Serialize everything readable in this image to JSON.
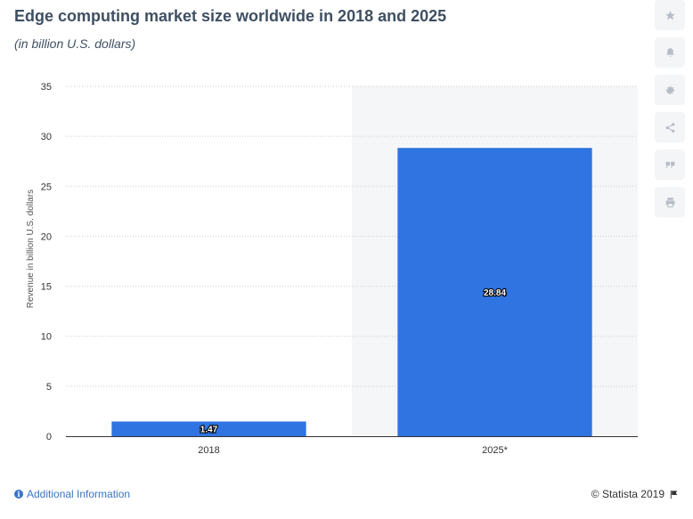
{
  "header": {
    "title": "Edge computing market size worldwide in 2018 and 2025",
    "subtitle": "(in billion U.S. dollars)"
  },
  "toolbar": {
    "icons": [
      "star-icon",
      "bell-icon",
      "gear-icon",
      "share-icon",
      "quote-icon",
      "print-icon"
    ]
  },
  "footer": {
    "info_label": "Additional Information",
    "copyright": "© Statista 2019"
  },
  "colors": {
    "bar": "#2f74e0",
    "grid": "#c9ced6",
    "highlight_band": "#f5f6f7"
  },
  "chart_data": {
    "type": "bar",
    "categories": [
      "2018",
      "2025*"
    ],
    "series": [
      {
        "values": [
          1.47,
          28.84
        ]
      }
    ],
    "data_labels": [
      "1.47",
      "28.84"
    ],
    "title": "Edge computing market size worldwide in 2018 and 2025",
    "subtitle": "(in billion U.S. dollars)",
    "xlabel": "",
    "ylabel": "Revenue in billion U.S. dollars",
    "ylim": [
      0,
      35
    ],
    "yticks": [
      0,
      5,
      10,
      15,
      20,
      25,
      30,
      35
    ],
    "grid": true,
    "highlighted_category": "2025*"
  }
}
